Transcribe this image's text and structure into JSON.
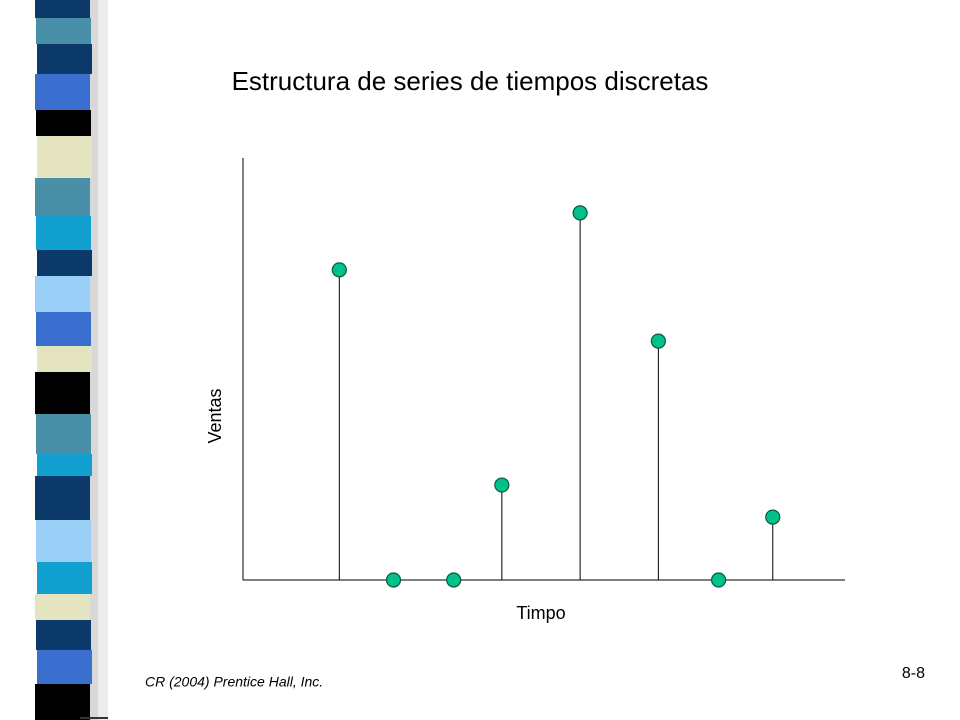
{
  "chart_data": {
    "type": "stem",
    "title": "Estructura de series de tiempos discretas",
    "x_label": "Timpo",
    "y_label": "Ventas",
    "x": [
      16,
      25,
      35,
      43,
      56,
      69,
      79,
      88
    ],
    "values": [
      73.5,
      0,
      0,
      22.5,
      87,
      56.6,
      0,
      14.9
    ],
    "color": "#00c08b",
    "xlim": [
      0,
      100
    ],
    "ylim": [
      0,
      100
    ]
  },
  "footer": {
    "source": "CR (2004) Prentice Hall, Inc.",
    "page": "8-8"
  }
}
